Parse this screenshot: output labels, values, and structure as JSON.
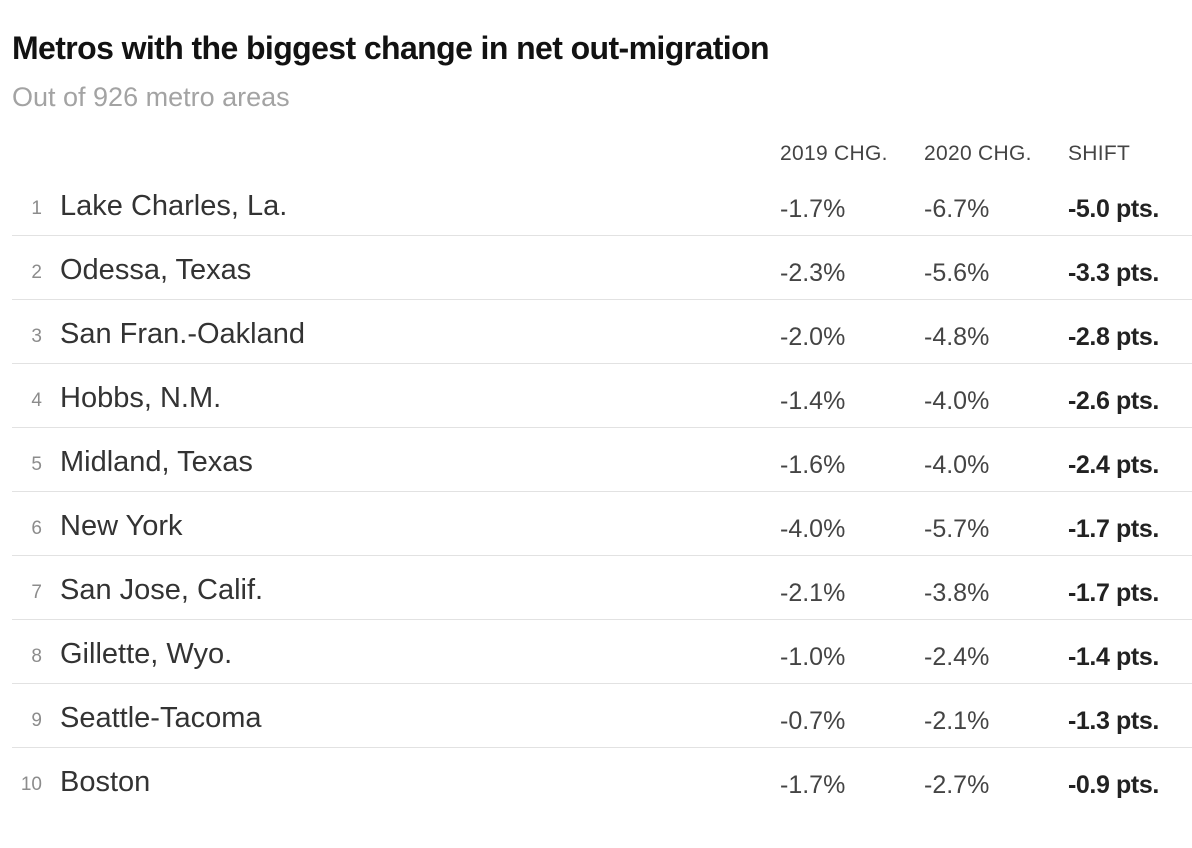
{
  "chart_data": {
    "type": "table",
    "title": "Metros with the biggest change in net out-migration",
    "subtitle": "Out of 926 metro areas",
    "columns": [
      "",
      "",
      "2019 CHG.",
      "2020 CHG.",
      "SHIFT"
    ],
    "rows": [
      {
        "rank": "1",
        "metro": "Lake Charles, La.",
        "chg_2019": "-1.7%",
        "chg_2020": "-6.7%",
        "shift": "-5.0 pts."
      },
      {
        "rank": "2",
        "metro": "Odessa, Texas",
        "chg_2019": "-2.3%",
        "chg_2020": "-5.6%",
        "shift": "-3.3 pts."
      },
      {
        "rank": "3",
        "metro": "San Fran.-Oakland",
        "chg_2019": "-2.0%",
        "chg_2020": "-4.8%",
        "shift": "-2.8 pts."
      },
      {
        "rank": "4",
        "metro": "Hobbs, N.M.",
        "chg_2019": "-1.4%",
        "chg_2020": "-4.0%",
        "shift": "-2.6 pts."
      },
      {
        "rank": "5",
        "metro": "Midland, Texas",
        "chg_2019": "-1.6%",
        "chg_2020": "-4.0%",
        "shift": "-2.4 pts."
      },
      {
        "rank": "6",
        "metro": "New York",
        "chg_2019": "-4.0%",
        "chg_2020": "-5.7%",
        "shift": "-1.7 pts."
      },
      {
        "rank": "7",
        "metro": "San Jose, Calif.",
        "chg_2019": "-2.1%",
        "chg_2020": "-3.8%",
        "shift": "-1.7 pts."
      },
      {
        "rank": "8",
        "metro": "Gillette, Wyo.",
        "chg_2019": "-1.0%",
        "chg_2020": "-2.4%",
        "shift": "-1.4 pts."
      },
      {
        "rank": "9",
        "metro": "Seattle-Tacoma",
        "chg_2019": "-0.7%",
        "chg_2020": "-2.1%",
        "shift": "-1.3 pts."
      },
      {
        "rank": "10",
        "metro": "Boston",
        "chg_2019": "-1.7%",
        "chg_2020": "-2.7%",
        "shift": "-0.9 pts."
      }
    ]
  },
  "colors": {
    "title": "#121212",
    "subtitle": "#a3a3a3",
    "rule": "#e2e2e2",
    "rank": "#8c8c8c"
  }
}
